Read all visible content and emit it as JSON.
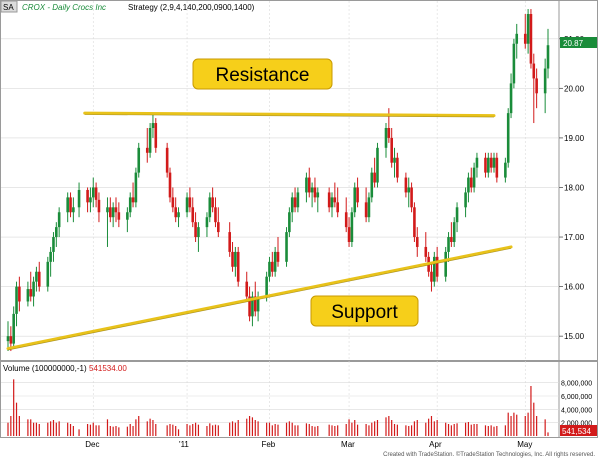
{
  "header": {
    "symbol_badge": "SA",
    "title": "CROX - Daily  Crocs Inc",
    "strategy": "Strategy (2,9,4,140,200,0900,1400)"
  },
  "annotations": {
    "resistance_label": "Resistance",
    "support_label": "Support"
  },
  "volume_panel": {
    "label": "Volume (100000000,-1)",
    "value": "541534.00"
  },
  "footer": {
    "credit": "Created with TradeStation. ©TradeStation Technologies, Inc. All rights reserved."
  },
  "colors": {
    "up": "#1a8c3a",
    "down": "#d21a1a",
    "trendline": "#e8c21a",
    "label_bg": "#f6cf1a",
    "price_badge": "#1a8c3a",
    "volume_badge": "#d21a1a",
    "grid": "#d9d9d9"
  },
  "chart_data": {
    "type": "candlestick",
    "price_axis": {
      "ylim": [
        14.6,
        21.5
      ],
      "ticks": [
        "21.00",
        "20.00",
        "19.00",
        "18.00",
        "17.00",
        "16.00",
        "15.00"
      ]
    },
    "volume_axis": {
      "ylim": [
        0,
        9000000
      ],
      "ticks": [
        "8,000,000",
        "6,000,000",
        "4,000,000",
        "2,000,000"
      ]
    },
    "x_ticks": [
      "Dec",
      "'11",
      "Feb",
      "Mar",
      "Apr",
      "May"
    ],
    "last_price": "20.87",
    "last_volume": "541,534",
    "resistance": {
      "start": [
        "2010-11-28",
        19.5
      ],
      "end": [
        "2011-04-21",
        19.45
      ]
    },
    "support": {
      "start": [
        "2010-11-01",
        14.75
      ],
      "end": [
        "2011-04-27",
        16.8
      ]
    },
    "candles": [
      {
        "d": "2010-11-01",
        "o": 14.9,
        "h": 15.3,
        "l": 14.7,
        "c": 15.0,
        "v": 2.0
      },
      {
        "d": "2010-11-02",
        "o": 15.0,
        "h": 15.2,
        "l": 14.7,
        "c": 14.85,
        "v": 3.0
      },
      {
        "d": "2010-11-03",
        "o": 14.85,
        "h": 15.6,
        "l": 14.75,
        "c": 15.45,
        "v": 8.5
      },
      {
        "d": "2010-11-04",
        "o": 15.45,
        "h": 16.1,
        "l": 15.2,
        "c": 16.0,
        "v": 5.0
      },
      {
        "d": "2010-11-05",
        "o": 16.0,
        "h": 16.2,
        "l": 15.5,
        "c": 15.7,
        "v": 3.0
      },
      {
        "d": "2010-11-08",
        "o": 15.7,
        "h": 16.1,
        "l": 15.6,
        "c": 15.95,
        "v": 2.5
      },
      {
        "d": "2010-11-09",
        "o": 15.95,
        "h": 16.3,
        "l": 15.7,
        "c": 15.8,
        "v": 2.5
      },
      {
        "d": "2010-11-10",
        "o": 15.8,
        "h": 16.2,
        "l": 15.6,
        "c": 16.1,
        "v": 2.0
      },
      {
        "d": "2010-11-11",
        "o": 16.1,
        "h": 16.4,
        "l": 15.9,
        "c": 16.3,
        "v": 2.0
      },
      {
        "d": "2010-11-12",
        "o": 16.3,
        "h": 16.5,
        "l": 15.9,
        "c": 16.0,
        "v": 1.8
      },
      {
        "d": "2010-11-15",
        "o": 16.0,
        "h": 16.6,
        "l": 15.9,
        "c": 16.5,
        "v": 2.0
      },
      {
        "d": "2010-11-16",
        "o": 16.5,
        "h": 16.8,
        "l": 16.2,
        "c": 16.7,
        "v": 2.2
      },
      {
        "d": "2010-11-17",
        "o": 16.7,
        "h": 17.1,
        "l": 16.5,
        "c": 17.0,
        "v": 2.4
      },
      {
        "d": "2010-11-18",
        "o": 17.0,
        "h": 17.3,
        "l": 16.8,
        "c": 17.2,
        "v": 2.0
      },
      {
        "d": "2010-11-19",
        "o": 17.2,
        "h": 17.6,
        "l": 17.0,
        "c": 17.5,
        "v": 2.2
      },
      {
        "d": "2010-11-22",
        "o": 17.5,
        "h": 17.9,
        "l": 17.3,
        "c": 17.8,
        "v": 2.0
      },
      {
        "d": "2010-11-23",
        "o": 17.8,
        "h": 17.9,
        "l": 17.4,
        "c": 17.5,
        "v": 1.8
      },
      {
        "d": "2010-11-24",
        "o": 17.5,
        "h": 17.8,
        "l": 17.3,
        "c": 17.6,
        "v": 1.5
      },
      {
        "d": "2010-11-26",
        "o": 17.6,
        "h": 18.1,
        "l": 17.4,
        "c": 17.95,
        "v": 1.0
      },
      {
        "d": "2010-11-29",
        "o": 17.95,
        "h": 18.0,
        "l": 17.5,
        "c": 17.7,
        "v": 1.8
      },
      {
        "d": "2010-11-30",
        "o": 17.7,
        "h": 18.0,
        "l": 17.5,
        "c": 17.8,
        "v": 1.7
      },
      {
        "d": "2010-12-01",
        "o": 17.8,
        "h": 18.2,
        "l": 17.6,
        "c": 18.0,
        "v": 2.0
      },
      {
        "d": "2010-12-02",
        "o": 18.0,
        "h": 18.1,
        "l": 17.6,
        "c": 17.75,
        "v": 1.6
      },
      {
        "d": "2010-12-03",
        "o": 17.75,
        "h": 17.9,
        "l": 17.3,
        "c": 17.5,
        "v": 1.6
      },
      {
        "d": "2010-12-06",
        "o": 17.5,
        "h": 17.8,
        "l": 16.8,
        "c": 17.6,
        "v": 2.5
      },
      {
        "d": "2010-12-07",
        "o": 17.6,
        "h": 17.8,
        "l": 17.3,
        "c": 17.4,
        "v": 1.5
      },
      {
        "d": "2010-12-08",
        "o": 17.4,
        "h": 17.7,
        "l": 17.2,
        "c": 17.6,
        "v": 1.4
      },
      {
        "d": "2010-12-09",
        "o": 17.6,
        "h": 17.8,
        "l": 17.3,
        "c": 17.5,
        "v": 1.5
      },
      {
        "d": "2010-12-10",
        "o": 17.5,
        "h": 17.7,
        "l": 17.2,
        "c": 17.35,
        "v": 1.3
      },
      {
        "d": "2010-12-13",
        "o": 17.35,
        "h": 17.6,
        "l": 17.1,
        "c": 17.5,
        "v": 1.4
      },
      {
        "d": "2010-12-14",
        "o": 17.5,
        "h": 17.9,
        "l": 17.4,
        "c": 17.8,
        "v": 1.8
      },
      {
        "d": "2010-12-15",
        "o": 17.8,
        "h": 18.1,
        "l": 17.6,
        "c": 17.7,
        "v": 1.5
      },
      {
        "d": "2010-12-16",
        "o": 17.7,
        "h": 18.4,
        "l": 17.6,
        "c": 18.3,
        "v": 2.5
      },
      {
        "d": "2010-12-17",
        "o": 18.3,
        "h": 18.9,
        "l": 18.2,
        "c": 18.8,
        "v": 3.0
      },
      {
        "d": "2010-12-20",
        "o": 18.8,
        "h": 19.2,
        "l": 18.5,
        "c": 18.7,
        "v": 2.2
      },
      {
        "d": "2010-12-21",
        "o": 18.7,
        "h": 19.3,
        "l": 18.6,
        "c": 19.2,
        "v": 2.6
      },
      {
        "d": "2010-12-22",
        "o": 19.2,
        "h": 19.5,
        "l": 19.0,
        "c": 19.3,
        "v": 2.4
      },
      {
        "d": "2010-12-23",
        "o": 19.3,
        "h": 19.4,
        "l": 18.7,
        "c": 18.8,
        "v": 1.8
      },
      {
        "d": "2010-12-27",
        "o": 18.8,
        "h": 18.9,
        "l": 18.2,
        "c": 18.3,
        "v": 1.6
      },
      {
        "d": "2010-12-28",
        "o": 18.3,
        "h": 18.4,
        "l": 17.7,
        "c": 17.8,
        "v": 1.8
      },
      {
        "d": "2010-12-29",
        "o": 17.8,
        "h": 18.0,
        "l": 17.5,
        "c": 17.6,
        "v": 1.7
      },
      {
        "d": "2010-12-30",
        "o": 17.6,
        "h": 17.8,
        "l": 17.3,
        "c": 17.4,
        "v": 1.5
      },
      {
        "d": "2010-12-31",
        "o": 17.4,
        "h": 17.6,
        "l": 17.2,
        "c": 17.5,
        "v": 1.0
      },
      {
        "d": "2011-01-03",
        "o": 17.5,
        "h": 17.9,
        "l": 17.4,
        "c": 17.8,
        "v": 1.8
      },
      {
        "d": "2011-01-04",
        "o": 17.8,
        "h": 18.0,
        "l": 17.5,
        "c": 17.6,
        "v": 1.6
      },
      {
        "d": "2011-01-05",
        "o": 17.6,
        "h": 17.8,
        "l": 17.2,
        "c": 17.3,
        "v": 1.8
      },
      {
        "d": "2011-01-06",
        "o": 17.3,
        "h": 17.5,
        "l": 16.9,
        "c": 17.0,
        "v": 2.0
      },
      {
        "d": "2011-01-07",
        "o": 17.0,
        "h": 17.3,
        "l": 16.7,
        "c": 17.2,
        "v": 1.7
      },
      {
        "d": "2011-01-10",
        "o": 17.2,
        "h": 17.5,
        "l": 17.0,
        "c": 17.4,
        "v": 1.5
      },
      {
        "d": "2011-01-11",
        "o": 17.4,
        "h": 17.9,
        "l": 17.3,
        "c": 17.8,
        "v": 1.9
      },
      {
        "d": "2011-01-12",
        "o": 17.8,
        "h": 18.0,
        "l": 17.5,
        "c": 17.6,
        "v": 1.6
      },
      {
        "d": "2011-01-13",
        "o": 17.6,
        "h": 17.8,
        "l": 17.2,
        "c": 17.3,
        "v": 1.7
      },
      {
        "d": "2011-01-14",
        "o": 17.3,
        "h": 17.6,
        "l": 17.0,
        "c": 17.1,
        "v": 1.6
      },
      {
        "d": "2011-01-18",
        "o": 17.1,
        "h": 17.3,
        "l": 16.6,
        "c": 16.7,
        "v": 2.0
      },
      {
        "d": "2011-01-19",
        "o": 16.7,
        "h": 16.9,
        "l": 16.3,
        "c": 16.4,
        "v": 2.2
      },
      {
        "d": "2011-01-20",
        "o": 16.4,
        "h": 16.8,
        "l": 16.2,
        "c": 16.7,
        "v": 2.0
      },
      {
        "d": "2011-01-21",
        "o": 16.7,
        "h": 16.8,
        "l": 16.0,
        "c": 16.1,
        "v": 2.4
      },
      {
        "d": "2011-01-24",
        "o": 16.1,
        "h": 16.3,
        "l": 15.7,
        "c": 15.8,
        "v": 2.6
      },
      {
        "d": "2011-01-25",
        "o": 15.8,
        "h": 16.0,
        "l": 15.3,
        "c": 15.4,
        "v": 3.0
      },
      {
        "d": "2011-01-26",
        "o": 15.4,
        "h": 15.9,
        "l": 15.2,
        "c": 15.8,
        "v": 2.8
      },
      {
        "d": "2011-01-27",
        "o": 15.8,
        "h": 16.1,
        "l": 15.4,
        "c": 15.5,
        "v": 2.4
      },
      {
        "d": "2011-01-28",
        "o": 15.5,
        "h": 15.9,
        "l": 15.3,
        "c": 15.8,
        "v": 2.2
      },
      {
        "d": "2011-01-31",
        "o": 15.8,
        "h": 16.3,
        "l": 15.7,
        "c": 16.2,
        "v": 2.0
      },
      {
        "d": "2011-02-01",
        "o": 16.2,
        "h": 16.6,
        "l": 16.1,
        "c": 16.5,
        "v": 2.0
      },
      {
        "d": "2011-02-02",
        "o": 16.5,
        "h": 16.7,
        "l": 16.2,
        "c": 16.3,
        "v": 1.6
      },
      {
        "d": "2011-02-03",
        "o": 16.3,
        "h": 16.8,
        "l": 16.2,
        "c": 16.7,
        "v": 1.8
      },
      {
        "d": "2011-02-04",
        "o": 16.7,
        "h": 17.0,
        "l": 16.4,
        "c": 16.5,
        "v": 1.7
      },
      {
        "d": "2011-02-07",
        "o": 16.5,
        "h": 17.2,
        "l": 16.4,
        "c": 17.1,
        "v": 2.0
      },
      {
        "d": "2011-02-08",
        "o": 17.1,
        "h": 17.6,
        "l": 17.0,
        "c": 17.5,
        "v": 2.2
      },
      {
        "d": "2011-02-09",
        "o": 17.5,
        "h": 17.9,
        "l": 17.3,
        "c": 17.8,
        "v": 2.0
      },
      {
        "d": "2011-02-10",
        "o": 17.8,
        "h": 18.0,
        "l": 17.5,
        "c": 17.6,
        "v": 1.6
      },
      {
        "d": "2011-02-11",
        "o": 17.6,
        "h": 18.0,
        "l": 17.5,
        "c": 17.9,
        "v": 1.6
      },
      {
        "d": "2011-02-14",
        "o": 17.9,
        "h": 18.3,
        "l": 17.7,
        "c": 18.2,
        "v": 1.9
      },
      {
        "d": "2011-02-15",
        "o": 18.2,
        "h": 18.4,
        "l": 17.8,
        "c": 17.9,
        "v": 1.8
      },
      {
        "d": "2011-02-16",
        "o": 17.9,
        "h": 18.1,
        "l": 17.6,
        "c": 18.0,
        "v": 1.5
      },
      {
        "d": "2011-02-17",
        "o": 18.0,
        "h": 18.2,
        "l": 17.7,
        "c": 17.8,
        "v": 1.4
      },
      {
        "d": "2011-02-18",
        "o": 17.8,
        "h": 18.0,
        "l": 17.5,
        "c": 17.9,
        "v": 1.5
      },
      {
        "d": "2011-02-22",
        "o": 17.9,
        "h": 18.0,
        "l": 17.5,
        "c": 17.6,
        "v": 1.7
      },
      {
        "d": "2011-02-23",
        "o": 17.6,
        "h": 17.9,
        "l": 17.4,
        "c": 17.8,
        "v": 1.6
      },
      {
        "d": "2011-02-24",
        "o": 17.8,
        "h": 18.1,
        "l": 17.6,
        "c": 17.7,
        "v": 1.5
      },
      {
        "d": "2011-02-25",
        "o": 17.7,
        "h": 18.0,
        "l": 17.4,
        "c": 17.5,
        "v": 1.6
      },
      {
        "d": "2011-02-28",
        "o": 17.5,
        "h": 17.8,
        "l": 17.1,
        "c": 17.2,
        "v": 1.8
      },
      {
        "d": "2011-03-01",
        "o": 17.2,
        "h": 17.4,
        "l": 16.8,
        "c": 16.9,
        "v": 2.5
      },
      {
        "d": "2011-03-02",
        "o": 16.9,
        "h": 17.6,
        "l": 16.8,
        "c": 17.5,
        "v": 2.0
      },
      {
        "d": "2011-03-03",
        "o": 17.5,
        "h": 18.1,
        "l": 17.4,
        "c": 18.0,
        "v": 2.4
      },
      {
        "d": "2011-03-04",
        "o": 18.0,
        "h": 18.2,
        "l": 17.6,
        "c": 17.7,
        "v": 1.7
      },
      {
        "d": "2011-03-07",
        "o": 17.7,
        "h": 18.0,
        "l": 17.3,
        "c": 17.4,
        "v": 1.8
      },
      {
        "d": "2011-03-08",
        "o": 17.4,
        "h": 17.9,
        "l": 17.3,
        "c": 17.8,
        "v": 1.6
      },
      {
        "d": "2011-03-09",
        "o": 17.8,
        "h": 18.4,
        "l": 17.7,
        "c": 18.3,
        "v": 2.0
      },
      {
        "d": "2011-03-10",
        "o": 18.3,
        "h": 18.6,
        "l": 18.0,
        "c": 18.1,
        "v": 2.2
      },
      {
        "d": "2011-03-11",
        "o": 18.1,
        "h": 18.9,
        "l": 18.0,
        "c": 18.8,
        "v": 2.4
      },
      {
        "d": "2011-03-14",
        "o": 18.8,
        "h": 19.3,
        "l": 18.6,
        "c": 19.2,
        "v": 2.8
      },
      {
        "d": "2011-03-15",
        "o": 19.2,
        "h": 19.6,
        "l": 18.9,
        "c": 19.0,
        "v": 3.0
      },
      {
        "d": "2011-03-16",
        "o": 19.0,
        "h": 19.2,
        "l": 18.4,
        "c": 18.5,
        "v": 2.4
      },
      {
        "d": "2011-03-17",
        "o": 18.5,
        "h": 18.8,
        "l": 18.2,
        "c": 18.6,
        "v": 1.8
      },
      {
        "d": "2011-03-18",
        "o": 18.6,
        "h": 18.7,
        "l": 18.1,
        "c": 18.2,
        "v": 1.7
      },
      {
        "d": "2011-03-21",
        "o": 18.2,
        "h": 18.3,
        "l": 17.8,
        "c": 17.9,
        "v": 1.6
      },
      {
        "d": "2011-03-22",
        "o": 17.9,
        "h": 18.2,
        "l": 17.6,
        "c": 18.0,
        "v": 1.5
      },
      {
        "d": "2011-03-23",
        "o": 18.0,
        "h": 18.1,
        "l": 17.5,
        "c": 17.6,
        "v": 1.6
      },
      {
        "d": "2011-03-24",
        "o": 17.6,
        "h": 17.7,
        "l": 16.9,
        "c": 17.0,
        "v": 2.2
      },
      {
        "d": "2011-03-25",
        "o": 17.0,
        "h": 17.2,
        "l": 16.6,
        "c": 16.8,
        "v": 2.4
      },
      {
        "d": "2011-03-28",
        "o": 16.8,
        "h": 17.1,
        "l": 16.5,
        "c": 16.6,
        "v": 2.0
      },
      {
        "d": "2011-03-29",
        "o": 16.6,
        "h": 16.7,
        "l": 16.2,
        "c": 16.3,
        "v": 2.6
      },
      {
        "d": "2011-03-30",
        "o": 16.3,
        "h": 16.5,
        "l": 15.9,
        "c": 16.1,
        "v": 3.0
      },
      {
        "d": "2011-03-31",
        "o": 16.1,
        "h": 16.7,
        "l": 16.0,
        "c": 16.6,
        "v": 2.2
      },
      {
        "d": "2011-04-01",
        "o": 16.6,
        "h": 16.8,
        "l": 16.1,
        "c": 16.2,
        "v": 2.4
      },
      {
        "d": "2011-04-04",
        "o": 16.2,
        "h": 16.8,
        "l": 16.1,
        "c": 16.7,
        "v": 2.0
      },
      {
        "d": "2011-04-05",
        "o": 16.7,
        "h": 17.1,
        "l": 16.5,
        "c": 17.0,
        "v": 1.8
      },
      {
        "d": "2011-04-06",
        "o": 17.0,
        "h": 17.3,
        "l": 16.8,
        "c": 16.9,
        "v": 1.6
      },
      {
        "d": "2011-04-07",
        "o": 16.9,
        "h": 17.4,
        "l": 16.8,
        "c": 17.3,
        "v": 1.8
      },
      {
        "d": "2011-04-08",
        "o": 17.3,
        "h": 17.7,
        "l": 17.1,
        "c": 17.6,
        "v": 1.9
      },
      {
        "d": "2011-04-11",
        "o": 17.6,
        "h": 18.0,
        "l": 17.4,
        "c": 17.9,
        "v": 2.0
      },
      {
        "d": "2011-04-12",
        "o": 17.9,
        "h": 18.3,
        "l": 17.7,
        "c": 18.2,
        "v": 2.1
      },
      {
        "d": "2011-04-13",
        "o": 18.2,
        "h": 18.4,
        "l": 17.9,
        "c": 18.0,
        "v": 1.7
      },
      {
        "d": "2011-04-14",
        "o": 18.0,
        "h": 18.5,
        "l": 17.9,
        "c": 18.4,
        "v": 1.8
      },
      {
        "d": "2011-04-15",
        "o": 18.4,
        "h": 18.7,
        "l": 18.2,
        "c": 18.6,
        "v": 1.8
      },
      {
        "d": "2011-04-18",
        "o": 18.6,
        "h": 18.7,
        "l": 18.2,
        "c": 18.3,
        "v": 1.6
      },
      {
        "d": "2011-04-19",
        "o": 18.3,
        "h": 18.7,
        "l": 18.2,
        "c": 18.6,
        "v": 1.5
      },
      {
        "d": "2011-04-20",
        "o": 18.6,
        "h": 18.7,
        "l": 18.3,
        "c": 18.4,
        "v": 1.6
      },
      {
        "d": "2011-04-21",
        "o": 18.4,
        "h": 18.7,
        "l": 18.3,
        "c": 18.6,
        "v": 1.4
      },
      {
        "d": "2011-04-22",
        "o": 18.6,
        "h": 18.7,
        "l": 18.1,
        "c": 18.2,
        "v": 1.5
      },
      {
        "d": "2011-04-25",
        "o": 18.2,
        "h": 18.6,
        "l": 18.1,
        "c": 18.5,
        "v": 1.6
      },
      {
        "d": "2011-04-26",
        "o": 18.5,
        "h": 19.6,
        "l": 18.4,
        "c": 19.5,
        "v": 3.5
      },
      {
        "d": "2011-04-27",
        "o": 19.5,
        "h": 20.3,
        "l": 19.4,
        "c": 20.1,
        "v": 3.0
      },
      {
        "d": "2011-04-28",
        "o": 20.1,
        "h": 21.0,
        "l": 20.0,
        "c": 20.9,
        "v": 3.5
      },
      {
        "d": "2011-04-29",
        "o": 20.9,
        "h": 21.3,
        "l": 20.6,
        "c": 21.1,
        "v": 3.2
      },
      {
        "d": "2011-05-02",
        "o": 21.1,
        "h": 21.5,
        "l": 20.8,
        "c": 20.9,
        "v": 3.0
      },
      {
        "d": "2011-05-03",
        "o": 20.9,
        "h": 21.6,
        "l": 20.7,
        "c": 21.5,
        "v": 3.5
      },
      {
        "d": "2011-05-04",
        "o": 21.5,
        "h": 21.6,
        "l": 20.4,
        "c": 20.5,
        "v": 7.5
      },
      {
        "d": "2011-05-05",
        "o": 20.5,
        "h": 20.7,
        "l": 19.3,
        "c": 20.2,
        "v": 5.0
      },
      {
        "d": "2011-05-06",
        "o": 20.2,
        "h": 20.4,
        "l": 19.6,
        "c": 19.9,
        "v": 3.0
      },
      {
        "d": "2011-05-09",
        "o": 19.9,
        "h": 20.6,
        "l": 19.5,
        "c": 20.4,
        "v": 2.5
      },
      {
        "d": "2011-05-10",
        "o": 20.4,
        "h": 21.2,
        "l": 20.2,
        "c": 20.87,
        "v": 0.54
      }
    ]
  }
}
